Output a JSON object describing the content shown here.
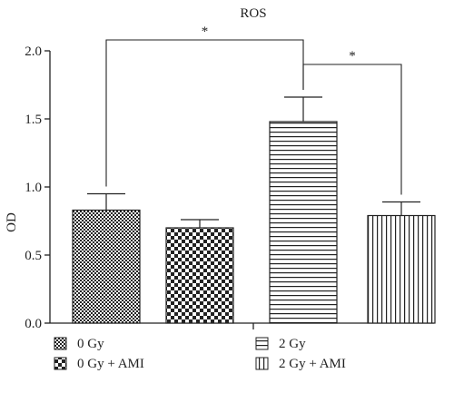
{
  "chart_data": {
    "type": "bar",
    "title": "ROS",
    "ylabel": "OD",
    "xlabel": "",
    "ylim": [
      0,
      2.0
    ],
    "yticks": [
      "0.0",
      "0.5",
      "1.0",
      "1.5",
      "2.0"
    ],
    "grid": false,
    "legend_position": "bottom",
    "categories": [
      "0 Gy",
      "0 Gy + AMI",
      "2 Gy",
      "2 Gy + AMI"
    ],
    "values": [
      0.83,
      0.7,
      1.48,
      0.79
    ],
    "errors": [
      0.12,
      0.06,
      0.18,
      0.1
    ],
    "patterns": [
      "fine-check",
      "coarse-check",
      "horizontal-lines",
      "vertical-lines"
    ],
    "significance": [
      {
        "from": "0 Gy",
        "to": "2 Gy",
        "label": "*"
      },
      {
        "from": "2 Gy",
        "to": "2 Gy + AMI",
        "label": "*"
      }
    ],
    "colors": {
      "ink": "#222222",
      "background": "#ffffff"
    }
  }
}
